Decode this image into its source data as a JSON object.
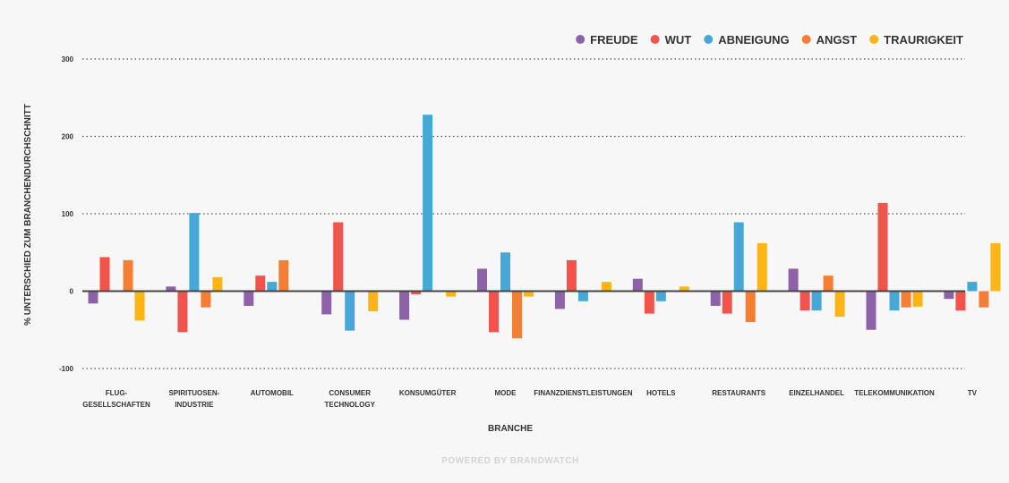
{
  "colors": {
    "background": "#f7f7f7",
    "gridline": "#555555",
    "zero_line": "#444444",
    "text": "#333333",
    "footer": "#d4d4d4"
  },
  "footer": "POWERED BY BRANDWATCH",
  "chart_data": {
    "type": "bar",
    "title": "",
    "xlabel": "BRANCHE",
    "ylabel": "% UNTERSCHIED ZUM BRANCHENDURCHSCHNITT",
    "ylim": [
      -100,
      300
    ],
    "yticks": [
      -100,
      0,
      100,
      200,
      300
    ],
    "ytick_labels": [
      "-100",
      "0",
      "100",
      "200",
      "300"
    ],
    "grid": "horizontal dotted",
    "legend_position": "top-right",
    "categories": [
      [
        "FLUG-",
        "GESELLSCHAFTEN"
      ],
      [
        "SPIRITUOSEN-",
        "INDUSTRIE"
      ],
      [
        "AUTOMOBIL"
      ],
      [
        "CONSUMER",
        "TECHNOLOGY"
      ],
      [
        "KONSUMGÜTER"
      ],
      [
        "MODE"
      ],
      [
        "FINANZDIENSTLEISTUNGEN"
      ],
      [
        "HOTELS"
      ],
      [
        "RESTAURANTS"
      ],
      [
        "EINZELHANDEL"
      ],
      [
        "TELEKOMMUNIKATION"
      ],
      [
        "TV"
      ]
    ],
    "series": [
      {
        "name": "FREUDE",
        "color": "#8e62a8",
        "values": [
          -16,
          6,
          -19,
          -30,
          -37,
          29,
          -23,
          16,
          -19,
          29,
          -50,
          -10
        ]
      },
      {
        "name": "WUT",
        "color": "#f2534a",
        "values": [
          44,
          -53,
          20,
          89,
          -4,
          -53,
          40,
          -29,
          -29,
          -25,
          114,
          -25
        ]
      },
      {
        "name": "ABNEIGUNG",
        "color": "#45a8d6",
        "values": [
          0,
          101,
          12,
          -51,
          228,
          50,
          -13,
          -13,
          89,
          -25,
          -25,
          12
        ]
      },
      {
        "name": "ANGST",
        "color": "#f47e33",
        "values": [
          40,
          -21,
          40,
          0,
          0,
          -61,
          0,
          0,
          -40,
          20,
          -21,
          -21
        ]
      },
      {
        "name": "TRAURIGKEIT",
        "color": "#fdb515",
        "values": [
          -38,
          18,
          0,
          -26,
          -7,
          -7,
          12,
          6,
          62,
          -33,
          -20,
          62
        ]
      }
    ]
  }
}
